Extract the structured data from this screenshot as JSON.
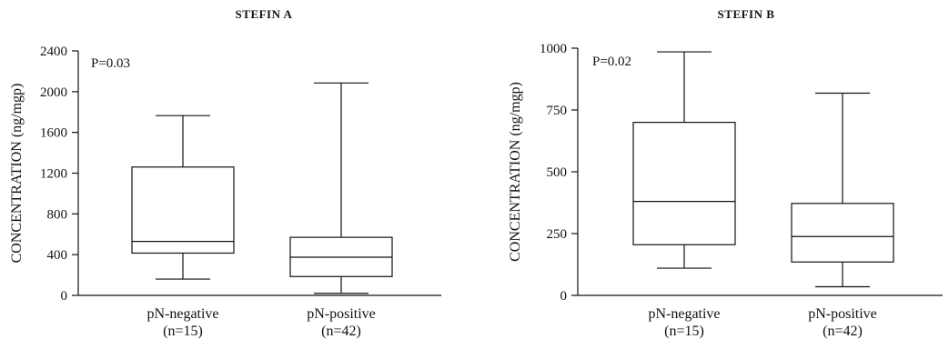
{
  "chart_data": [
    {
      "type": "box",
      "title": "STEFIN A",
      "ylabel": "CONCENTRATION (ng/mgp)",
      "ylim": [
        0,
        2400
      ],
      "yticks": [
        0,
        400,
        800,
        1200,
        1600,
        2000,
        2400
      ],
      "annotation": "P=0.03",
      "categories": [
        {
          "label": "pN-negative",
          "n_label": "(n=15)"
        },
        {
          "label": "pN-positive",
          "n_label": "(n=42)"
        }
      ],
      "boxes": [
        {
          "whisker_low": 160,
          "q1": 415,
          "median": 530,
          "q3": 1260,
          "whisker_high": 1765
        },
        {
          "whisker_low": 20,
          "q1": 185,
          "median": 375,
          "q3": 570,
          "whisker_high": 2085
        }
      ]
    },
    {
      "type": "box",
      "title": "STEFIN B",
      "ylabel": "CONCENTRATION (ng/mgp)",
      "ylim": [
        0,
        1000
      ],
      "yticks": [
        0,
        250,
        500,
        750,
        1000
      ],
      "annotation": "P=0.02",
      "categories": [
        {
          "label": "pN-negative",
          "n_label": "(n=15)"
        },
        {
          "label": "pN-positive",
          "n_label": "(n=42)"
        }
      ],
      "boxes": [
        {
          "whisker_low": 110,
          "q1": 205,
          "median": 380,
          "q3": 700,
          "whisker_high": 985
        },
        {
          "whisker_low": 35,
          "q1": 135,
          "median": 238,
          "q3": 372,
          "whisker_high": 818
        }
      ]
    }
  ]
}
